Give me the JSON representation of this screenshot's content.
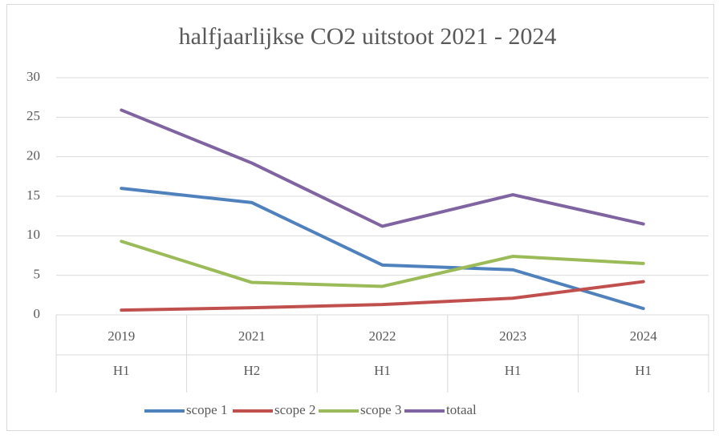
{
  "chart_data": {
    "type": "line",
    "title": "halfjaarlijkse CO2 uitstoot 2021 - 2024",
    "categories": [
      "2019",
      "2021",
      "2022",
      "2023",
      "2024"
    ],
    "periods": [
      "H1",
      "H2",
      "H1",
      "H1",
      "H1"
    ],
    "series": [
      {
        "name": "scope 1",
        "color": "#4f81bd",
        "values": [
          16,
          14.2,
          6.3,
          5.7,
          0.8
        ]
      },
      {
        "name": "scope 2",
        "color": "#c0504d",
        "values": [
          0.6,
          0.9,
          1.3,
          2.1,
          4.2
        ]
      },
      {
        "name": "scope 3",
        "color": "#9bbb59",
        "values": [
          9.3,
          4.1,
          3.6,
          7.4,
          6.5
        ]
      },
      {
        "name": "totaal",
        "color": "#8064a2",
        "values": [
          25.9,
          19.2,
          11.2,
          15.2,
          11.5
        ]
      }
    ],
    "ylim": [
      0,
      30
    ],
    "yticks": [
      0,
      5,
      10,
      15,
      20,
      25,
      30
    ],
    "grid": true,
    "legend": "bottom"
  }
}
